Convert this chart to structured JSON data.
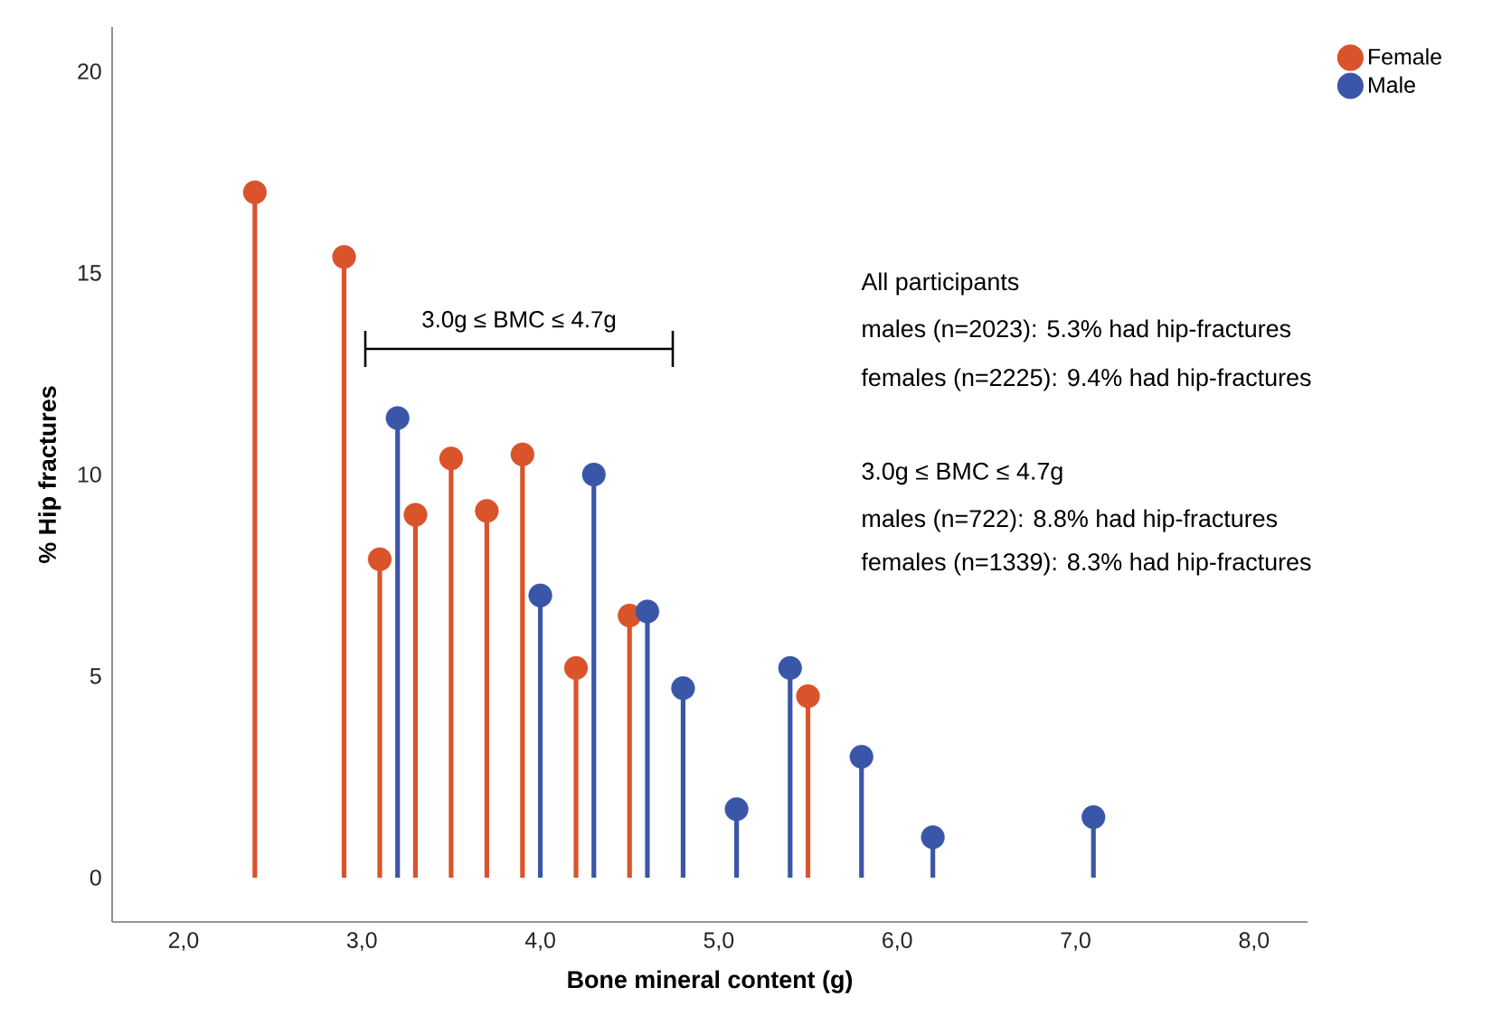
{
  "chart_data": {
    "type": "lollipop",
    "xlabel": "Bone mineral content (g)",
    "ylabel": "% Hip fractures",
    "xlim": [
      1.6,
      8.3
    ],
    "ylim": [
      -1.1,
      21.1
    ],
    "xticks": [
      {
        "value": 2,
        "label": "2,0"
      },
      {
        "value": 3,
        "label": "3,0"
      },
      {
        "value": 4,
        "label": "4,0"
      },
      {
        "value": 5,
        "label": "5,0"
      },
      {
        "value": 6,
        "label": "6,0"
      },
      {
        "value": 7,
        "label": "7,0"
      },
      {
        "value": 8,
        "label": "8,0"
      }
    ],
    "yticks": [
      0,
      5,
      10,
      15,
      20
    ],
    "marker": "circle",
    "legend": "top right",
    "series": [
      {
        "name": "Female",
        "color": "#d9532b",
        "x": [
          2.4,
          2.9,
          3.1,
          3.3,
          3.5,
          3.7,
          3.9,
          4.2,
          4.5,
          5.5
        ],
        "values": [
          17.0,
          15.4,
          7.9,
          9.0,
          10.4,
          9.1,
          10.5,
          5.2,
          6.5,
          4.5
        ]
      },
      {
        "name": "Male",
        "color": "#3a56a8",
        "x": [
          3.2,
          4.0,
          4.3,
          4.6,
          4.8,
          5.1,
          5.4,
          5.8,
          6.2,
          7.1
        ],
        "values": [
          11.4,
          7.0,
          10.0,
          6.6,
          4.7,
          1.7,
          5.2,
          3.0,
          1.0,
          1.5
        ]
      }
    ],
    "annotations": [
      "3.0g ≤ BMC ≤ 4.7g",
      "All participants",
      "males (n=2023): 5.3% had hip-fractures",
      "females (n=2225): 9.4% had hip-fractures",
      "3.0g ≤ BMC ≤ 4.7g",
      "males (n=722): 8.8% had hip-fractures",
      "females (n=1339): 8.3% had hip-fractures"
    ]
  }
}
